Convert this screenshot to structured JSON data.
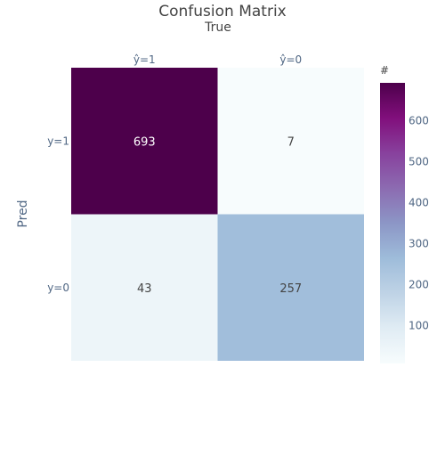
{
  "chart_data": {
    "type": "heatmap",
    "title": "Confusion Matrix",
    "xlabel": "True",
    "ylabel": "Pred",
    "x_categories": [
      "ŷ=1",
      "ŷ=0"
    ],
    "y_categories": [
      "y=1",
      "y=0"
    ],
    "values": [
      [
        693,
        7
      ],
      [
        43,
        257
      ]
    ],
    "colorbar": {
      "title": "#",
      "range": [
        7,
        693
      ],
      "ticks": [
        100,
        200,
        300,
        400,
        500,
        600
      ]
    },
    "colorscale": [
      [
        0.0,
        "#f7fcfd"
      ],
      [
        0.125,
        "#e0ecf4"
      ],
      [
        0.25,
        "#bfd3e6"
      ],
      [
        0.375,
        "#9ebcda"
      ],
      [
        0.5,
        "#8c96c6"
      ],
      [
        0.625,
        "#8c6bb1"
      ],
      [
        0.75,
        "#88419d"
      ],
      [
        0.875,
        "#810f7c"
      ],
      [
        1.0,
        "#4d004b"
      ]
    ],
    "text_color_dark": "#444444",
    "text_color_light": "#ffffff",
    "label_color": "#506784",
    "title_color": "#444444"
  }
}
